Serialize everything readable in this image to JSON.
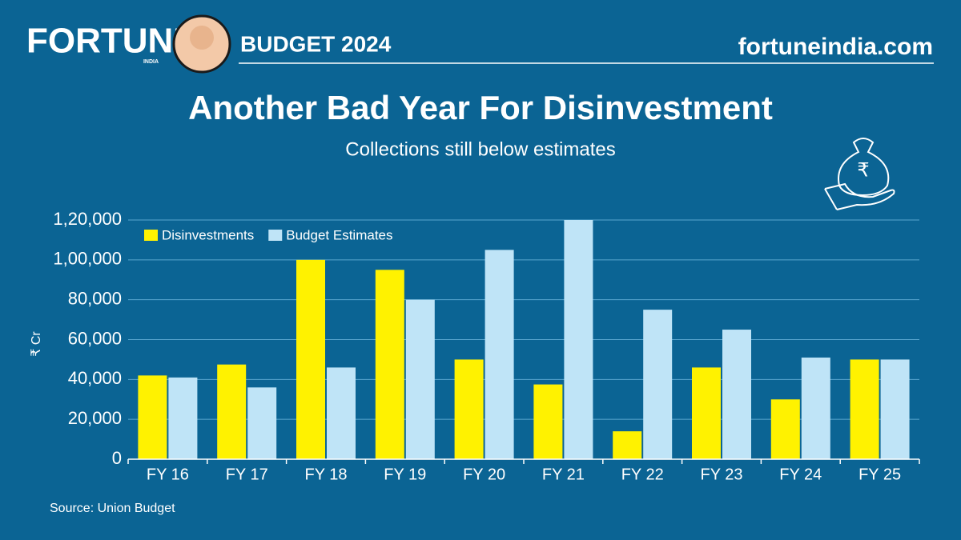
{
  "header": {
    "brand": "FORTUNE",
    "brand_sub": "INDIA",
    "edition": "BUDGET 2024",
    "site": "fortuneindia.com"
  },
  "chart_data": {
    "type": "bar",
    "title": "Another Bad Year For Disinvestment",
    "subtitle": "Collections still below estimates",
    "y_label": "₹ Cr",
    "categories": [
      "FY 16",
      "FY 17",
      "FY 18",
      "FY 19",
      "FY 20",
      "FY 21",
      "FY 22",
      "FY 23",
      "FY 24",
      "FY 25"
    ],
    "series": [
      {
        "name": "Disinvestments",
        "color": "#fff200",
        "values": [
          42000,
          47500,
          100000,
          95000,
          50000,
          37500,
          14000,
          46000,
          30000,
          50000
        ]
      },
      {
        "name": "Budget Estimates",
        "color": "#bfe4f7",
        "values": [
          41000,
          36000,
          46000,
          80000,
          105000,
          120000,
          75000,
          65000,
          51000,
          50000
        ]
      }
    ],
    "ylim": [
      0,
      120000
    ],
    "yticks": [
      0,
      {
        "value": 20000,
        "label": "20,000"
      },
      {
        "value": 40000,
        "label": "40,000"
      },
      {
        "value": 60000,
        "label": "60,000"
      },
      {
        "value": 80000,
        "label": "80,000"
      },
      {
        "value": 100000,
        "label": "1,00,000"
      },
      {
        "value": 120000,
        "label": "1,20,000"
      }
    ],
    "grid": true,
    "legend": "upper left",
    "source": "Source: Union Budget"
  }
}
